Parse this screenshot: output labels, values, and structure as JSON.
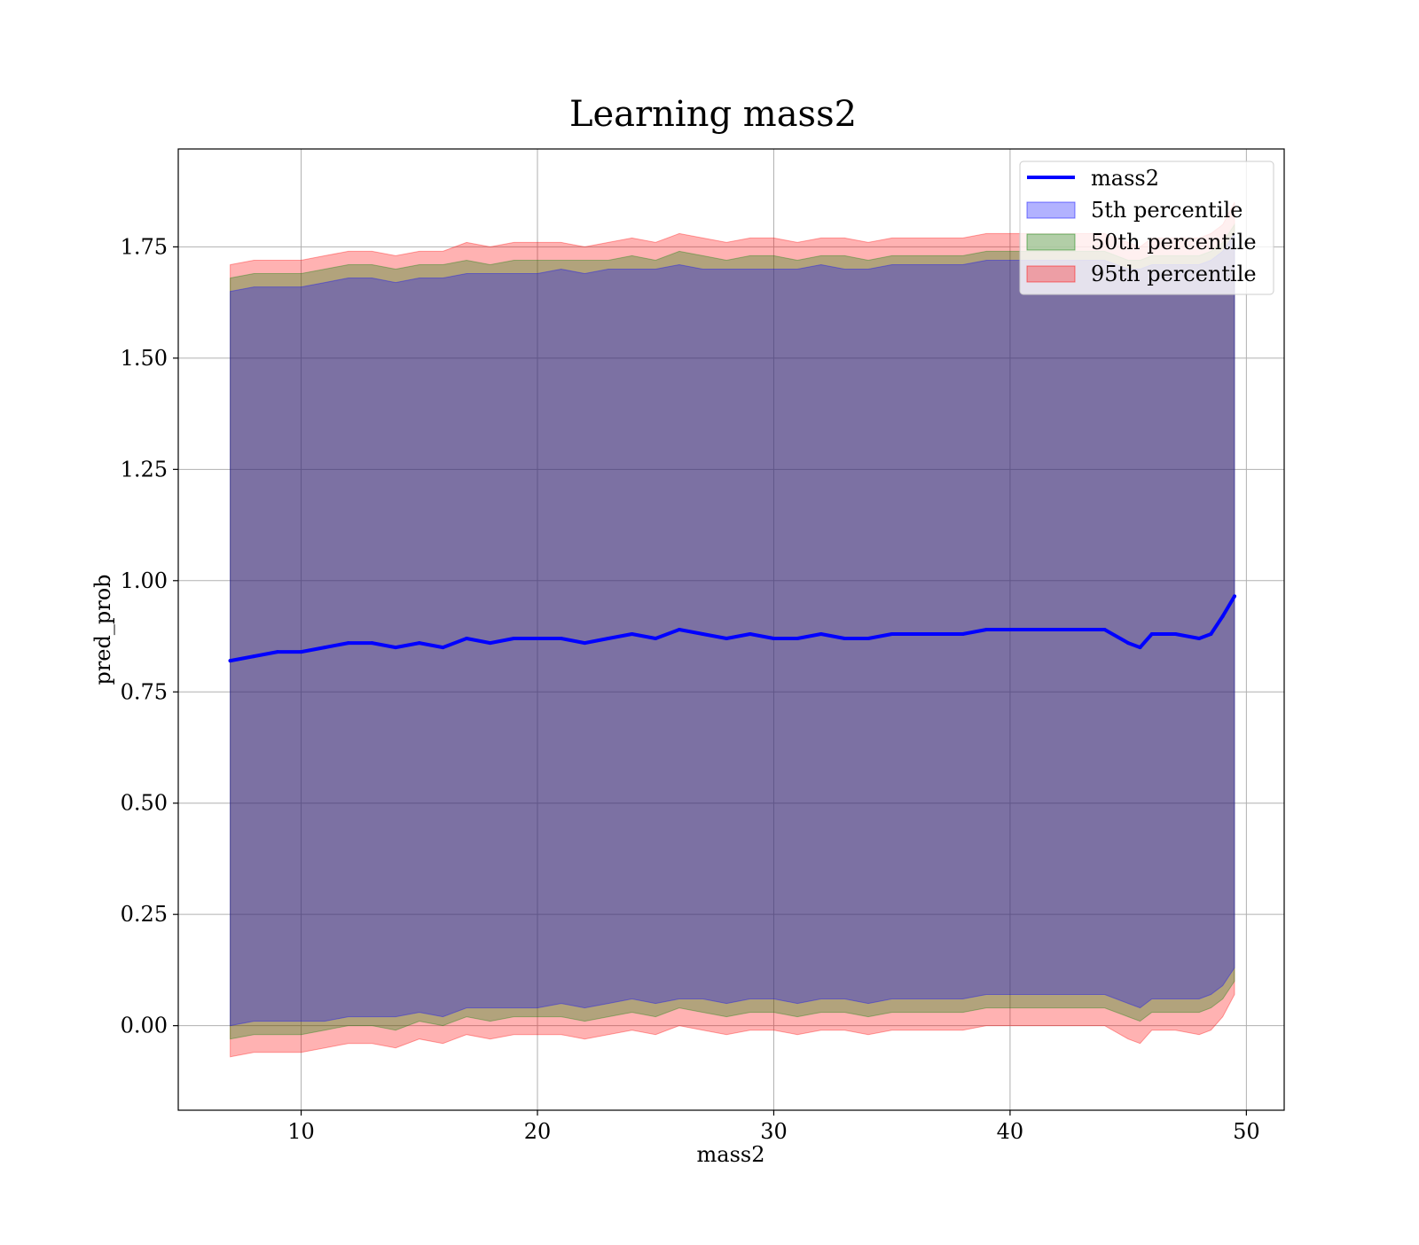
{
  "chart_data": {
    "type": "line",
    "title": "Learning mass2",
    "xlabel": "mass2",
    "ylabel": "pred_prob",
    "xlim": [
      4.8,
      51.6
    ],
    "ylim": [
      -0.19,
      1.97
    ],
    "xticks": [
      10,
      20,
      30,
      40,
      50
    ],
    "xtick_labels": [
      "10",
      "20",
      "30",
      "40",
      "50"
    ],
    "yticks": [
      0.0,
      0.25,
      0.5,
      0.75,
      1.0,
      1.25,
      1.5,
      1.75
    ],
    "ytick_labels": [
      "0.00",
      "0.25",
      "0.50",
      "0.75",
      "1.00",
      "1.25",
      "1.50",
      "1.75"
    ],
    "grid": true,
    "legend_position": "top-right",
    "legend": [
      "mass2",
      "5th percentile",
      "50th percentile",
      "95th percentile"
    ],
    "x": [
      7.0,
      8.0,
      9.0,
      10.0,
      11.0,
      12.0,
      13.0,
      14.0,
      15.0,
      16.0,
      17.0,
      18.0,
      19.0,
      20.0,
      21.0,
      22.0,
      23.0,
      24.0,
      25.0,
      26.0,
      27.0,
      28.0,
      29.0,
      30.0,
      31.0,
      32.0,
      33.0,
      34.0,
      35.0,
      36.0,
      37.0,
      38.0,
      39.0,
      40.0,
      41.0,
      42.0,
      43.0,
      44.0,
      45.0,
      45.5,
      46.0,
      47.0,
      48.0,
      48.5,
      49.0,
      49.5
    ],
    "series": [
      {
        "name": "mass2",
        "color": "#0000ff",
        "values": [
          0.82,
          0.83,
          0.84,
          0.84,
          0.85,
          0.86,
          0.86,
          0.85,
          0.86,
          0.85,
          0.87,
          0.86,
          0.87,
          0.87,
          0.87,
          0.86,
          0.87,
          0.88,
          0.87,
          0.89,
          0.88,
          0.87,
          0.88,
          0.87,
          0.87,
          0.88,
          0.87,
          0.87,
          0.88,
          0.88,
          0.88,
          0.88,
          0.89,
          0.89,
          0.89,
          0.89,
          0.89,
          0.89,
          0.86,
          0.85,
          0.88,
          0.88,
          0.87,
          0.88,
          0.92,
          0.965
        ]
      }
    ],
    "bands": [
      {
        "name": "5th percentile",
        "color": "#0000ff",
        "lower": [
          0.0,
          0.01,
          0.01,
          0.01,
          0.01,
          0.02,
          0.02,
          0.02,
          0.03,
          0.02,
          0.04,
          0.04,
          0.04,
          0.04,
          0.05,
          0.04,
          0.05,
          0.06,
          0.05,
          0.06,
          0.06,
          0.05,
          0.06,
          0.06,
          0.05,
          0.06,
          0.06,
          0.05,
          0.06,
          0.06,
          0.06,
          0.06,
          0.07,
          0.07,
          0.07,
          0.07,
          0.07,
          0.07,
          0.05,
          0.04,
          0.06,
          0.06,
          0.06,
          0.07,
          0.09,
          0.13
        ],
        "upper": [
          1.65,
          1.66,
          1.66,
          1.66,
          1.67,
          1.68,
          1.68,
          1.67,
          1.68,
          1.68,
          1.69,
          1.69,
          1.69,
          1.69,
          1.7,
          1.69,
          1.7,
          1.7,
          1.7,
          1.71,
          1.7,
          1.7,
          1.7,
          1.7,
          1.7,
          1.71,
          1.7,
          1.7,
          1.71,
          1.71,
          1.71,
          1.71,
          1.72,
          1.72,
          1.72,
          1.72,
          1.72,
          1.72,
          1.7,
          1.7,
          1.71,
          1.71,
          1.71,
          1.72,
          1.74,
          1.78
        ]
      },
      {
        "name": "50th percentile",
        "color": "#008000",
        "lower": [
          -0.03,
          -0.02,
          -0.02,
          -0.02,
          -0.01,
          0.0,
          0.0,
          -0.01,
          0.01,
          0.0,
          0.02,
          0.01,
          0.02,
          0.02,
          0.02,
          0.01,
          0.02,
          0.03,
          0.02,
          0.04,
          0.03,
          0.02,
          0.03,
          0.03,
          0.02,
          0.03,
          0.03,
          0.02,
          0.03,
          0.03,
          0.03,
          0.03,
          0.04,
          0.04,
          0.04,
          0.04,
          0.04,
          0.04,
          0.02,
          0.01,
          0.03,
          0.03,
          0.03,
          0.04,
          0.06,
          0.1
        ],
        "upper": [
          1.68,
          1.69,
          1.69,
          1.69,
          1.7,
          1.71,
          1.71,
          1.7,
          1.71,
          1.71,
          1.72,
          1.71,
          1.72,
          1.72,
          1.72,
          1.72,
          1.72,
          1.73,
          1.72,
          1.74,
          1.73,
          1.72,
          1.73,
          1.73,
          1.72,
          1.73,
          1.73,
          1.72,
          1.73,
          1.73,
          1.73,
          1.73,
          1.74,
          1.74,
          1.74,
          1.74,
          1.74,
          1.74,
          1.72,
          1.72,
          1.73,
          1.73,
          1.73,
          1.74,
          1.76,
          1.8
        ]
      },
      {
        "name": "95th percentile",
        "color": "#ff0000",
        "lower": [
          -0.07,
          -0.06,
          -0.06,
          -0.06,
          -0.05,
          -0.04,
          -0.04,
          -0.05,
          -0.03,
          -0.04,
          -0.02,
          -0.03,
          -0.02,
          -0.02,
          -0.02,
          -0.03,
          -0.02,
          -0.01,
          -0.02,
          0.0,
          -0.01,
          -0.02,
          -0.01,
          -0.01,
          -0.02,
          -0.01,
          -0.01,
          -0.02,
          -0.01,
          -0.01,
          -0.01,
          -0.01,
          0.0,
          0.0,
          0.0,
          0.0,
          0.0,
          0.0,
          -0.03,
          -0.04,
          -0.01,
          -0.01,
          -0.02,
          -0.01,
          0.02,
          0.07
        ],
        "upper": [
          1.71,
          1.72,
          1.72,
          1.72,
          1.73,
          1.74,
          1.74,
          1.73,
          1.74,
          1.74,
          1.76,
          1.75,
          1.76,
          1.76,
          1.76,
          1.75,
          1.76,
          1.77,
          1.76,
          1.78,
          1.77,
          1.76,
          1.77,
          1.77,
          1.76,
          1.77,
          1.77,
          1.76,
          1.77,
          1.77,
          1.77,
          1.77,
          1.78,
          1.78,
          1.78,
          1.78,
          1.78,
          1.78,
          1.76,
          1.75,
          1.77,
          1.77,
          1.77,
          1.78,
          1.8,
          1.85
        ]
      }
    ]
  }
}
